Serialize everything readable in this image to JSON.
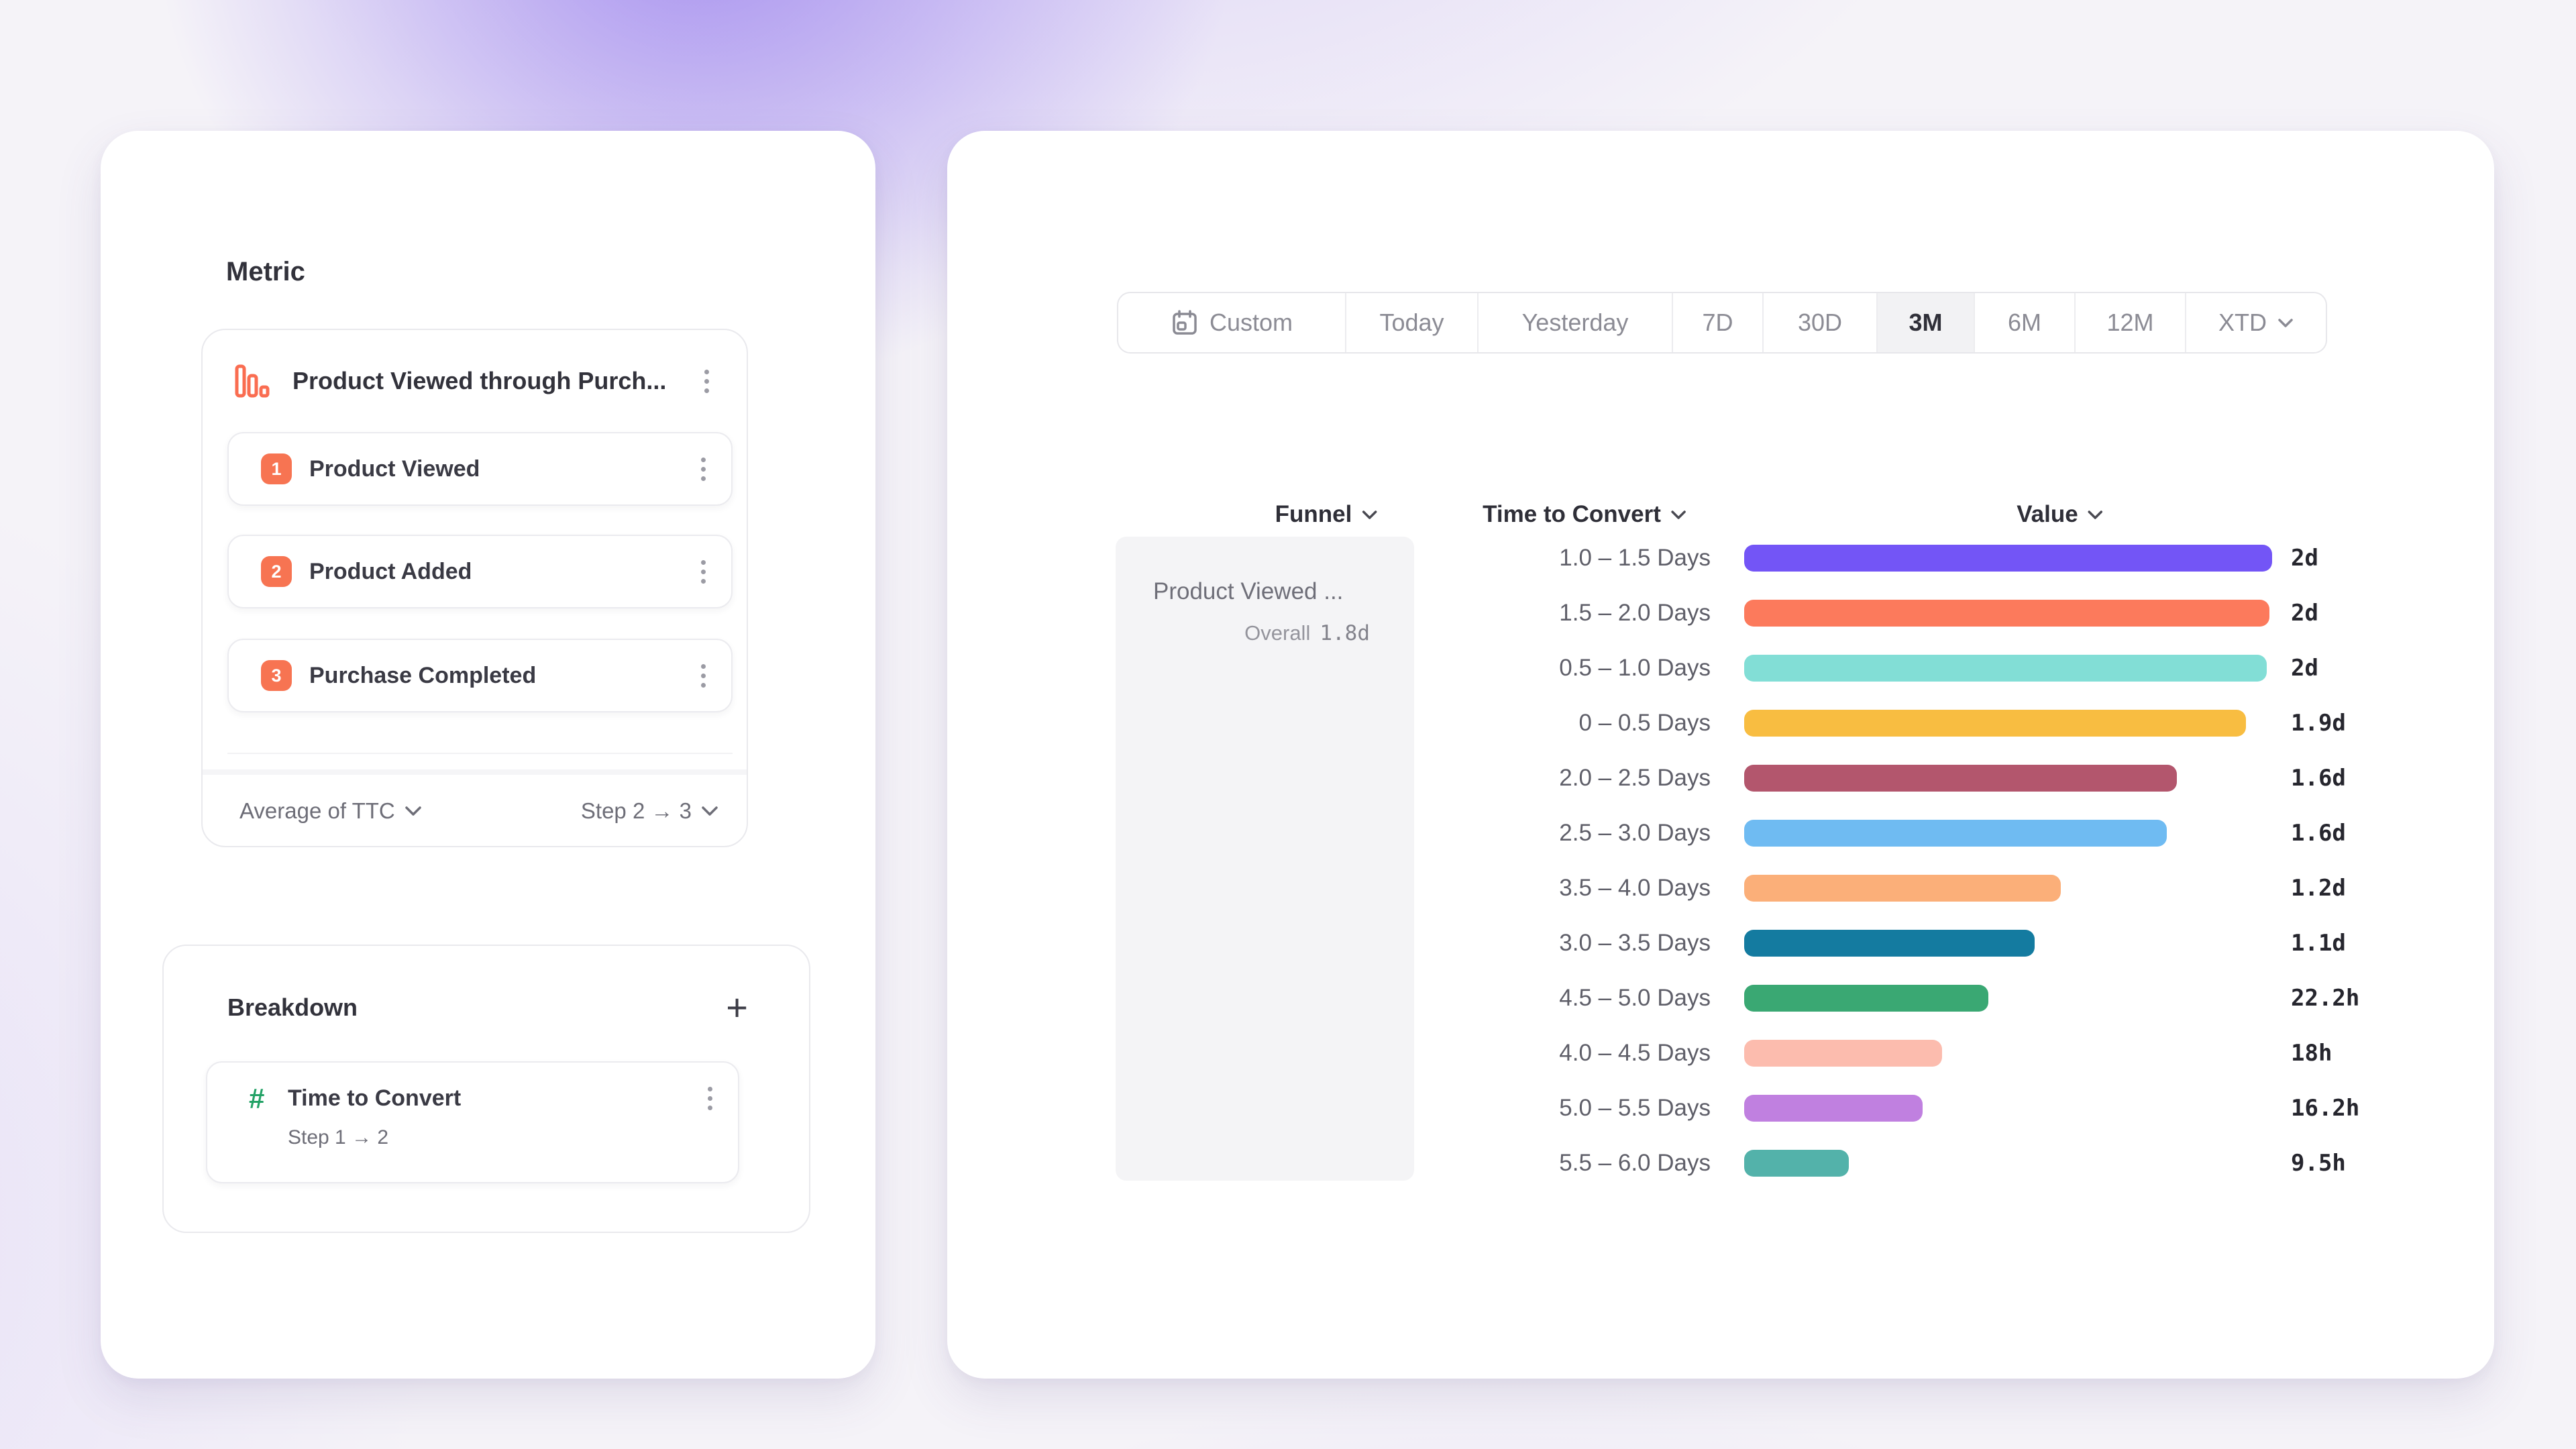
{
  "left_panel": {
    "metric": {
      "title": "Metric",
      "funnel": {
        "name": "Product Viewed through Purch...",
        "icon": "bar-chart-icon",
        "steps": [
          {
            "num": "1",
            "label": "Product Viewed"
          },
          {
            "num": "2",
            "label": "Product Added"
          },
          {
            "num": "3",
            "label": "Purchase Completed"
          }
        ],
        "aggregation": "Average of TTC",
        "step_range": "Step 2 → 3"
      }
    },
    "breakdown": {
      "title": "Breakdown",
      "add_label": "+",
      "item": {
        "icon": "hash-icon",
        "label": "Time to Convert",
        "sublabel": "Step 1 → 2"
      }
    }
  },
  "right_panel": {
    "date_ranges": [
      {
        "label": "Custom",
        "icon": "calendar",
        "selected": false
      },
      {
        "label": "Today",
        "selected": false
      },
      {
        "label": "Yesterday",
        "selected": false
      },
      {
        "label": "7D",
        "selected": false
      },
      {
        "label": "30D",
        "selected": false
      },
      {
        "label": "3M",
        "selected": true
      },
      {
        "label": "6M",
        "selected": false
      },
      {
        "label": "12M",
        "selected": false
      },
      {
        "label": "XTD",
        "chevron": true,
        "selected": false
      }
    ],
    "columns": {
      "funnel": "Funnel",
      "breakdown": "Time to Convert",
      "value": "Value"
    },
    "funnel_cell": {
      "name": "Product Viewed ...",
      "overall_label": "Overall",
      "overall_value": "1.8d"
    }
  },
  "colors": {
    "step_chip": "#F77452",
    "metric_icon": "#FA6D51",
    "hash_icon": "#23A266",
    "selected_text": "#2F2F38"
  },
  "chart_data": {
    "type": "bar",
    "orientation": "horizontal",
    "title": "Time to Convert by bucket",
    "xlabel": "Value",
    "ylabel": "Time to Convert",
    "xmax_days": 2.0,
    "grid": false,
    "legend": "none",
    "rows": [
      {
        "bucket": "1.0 – 1.5 Days",
        "value_label": "2d",
        "days": 2.0,
        "color": "#7355F6"
      },
      {
        "bucket": "1.5 – 2.0 Days",
        "value_label": "2d",
        "days": 1.99,
        "color": "#FC7A5C"
      },
      {
        "bucket": "0.5 – 1.0 Days",
        "value_label": "2d",
        "days": 1.98,
        "color": "#82DED6"
      },
      {
        "bucket": "0 – 0.5 Days",
        "value_label": "1.9d",
        "days": 1.9,
        "color": "#F8BD41"
      },
      {
        "bucket": "2.0 – 2.5 Days",
        "value_label": "1.6d",
        "days": 1.64,
        "color": "#B3566D"
      },
      {
        "bucket": "2.5 – 3.0 Days",
        "value_label": "1.6d",
        "days": 1.6,
        "color": "#6FBBF2"
      },
      {
        "bucket": "3.5 – 4.0 Days",
        "value_label": "1.2d",
        "days": 1.2,
        "color": "#FBAF79"
      },
      {
        "bucket": "3.0 – 3.5 Days",
        "value_label": "1.1d",
        "days": 1.1,
        "color": "#147BA0"
      },
      {
        "bucket": "4.5 – 5.0 Days",
        "value_label": "22.2h",
        "days": 0.925,
        "color": "#3AA873"
      },
      {
        "bucket": "4.0 – 4.5 Days",
        "value_label": "18h",
        "days": 0.75,
        "color": "#FCBCAE"
      },
      {
        "bucket": "5.0 – 5.5 Days",
        "value_label": "16.2h",
        "days": 0.675,
        "color": "#C080E0"
      },
      {
        "bucket": "5.5 – 6.0 Days",
        "value_label": "9.5h",
        "days": 0.396,
        "color": "#53B2AA"
      }
    ]
  }
}
